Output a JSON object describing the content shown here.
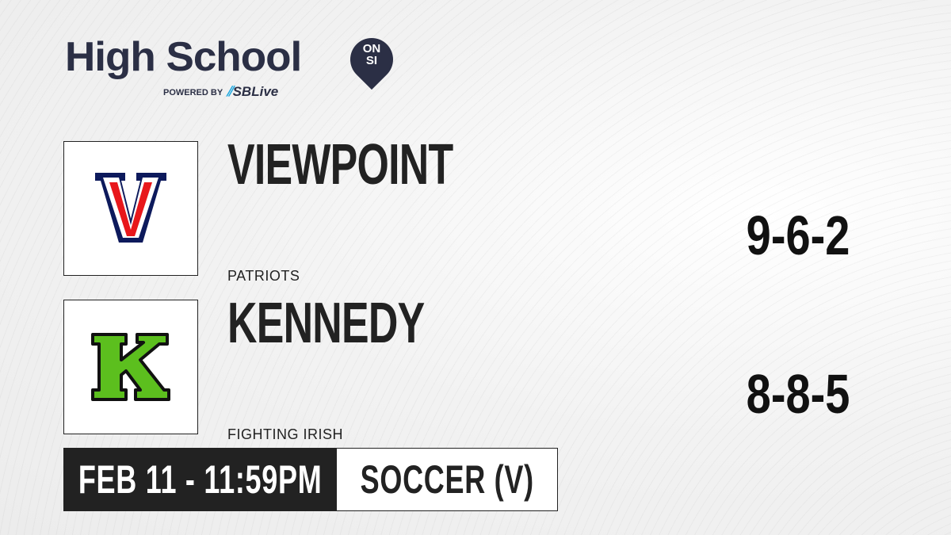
{
  "brand": {
    "title": "High School",
    "badge_top": "ON",
    "badge_bottom": "SI",
    "powered_by": "POWERED BY",
    "partner": "SBLive",
    "partner_accent": "#1fa8e0",
    "brand_color": "#2b2f45"
  },
  "teams": [
    {
      "name": "VIEWPOINT",
      "mascot": "PATRIOTS",
      "record": "9-6-2",
      "logo_letter": "V",
      "logo_colors": [
        "#0d1a5c",
        "#e8171b"
      ]
    },
    {
      "name": "KENNEDY",
      "mascot": "FIGHTING IRISH",
      "record": "8-8-5",
      "logo_letter": "K",
      "logo_colors": [
        "#111111",
        "#5cbf1e",
        "#f1d11a"
      ]
    }
  ],
  "event": {
    "datetime": "FEB 11 - 11:59PM",
    "sport": "SOCCER (V)"
  }
}
